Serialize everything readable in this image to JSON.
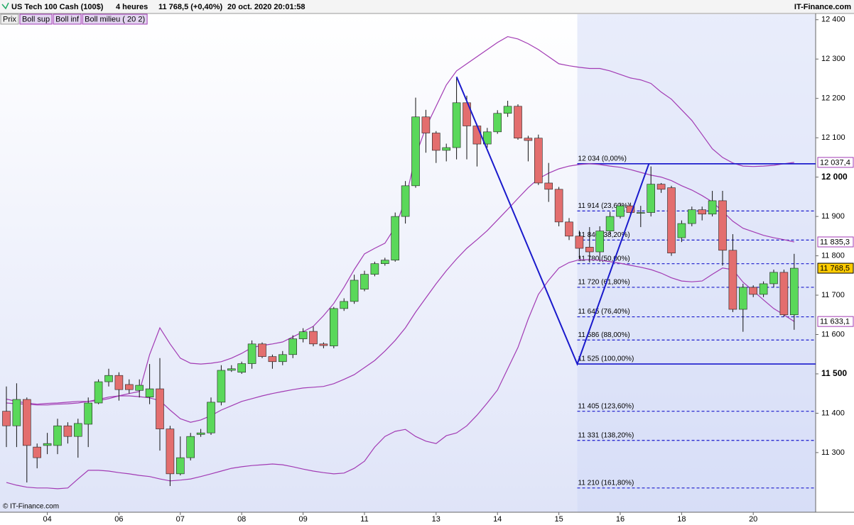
{
  "chart_data": {
    "type": "candlestick",
    "header": {
      "instrument": "US Tech 100 Cash (100$)",
      "period": "4 heures",
      "last": "11 768,5 (+0,40%)",
      "datetime": "20 oct. 2020 20:01:58",
      "source": "IT-Finance.com"
    },
    "footer": "© IT-Finance.com",
    "price_name": "Prix",
    "up_color": "#5ad85a",
    "down_color": "#e36e6e",
    "ylim": [
      11152,
      12414
    ],
    "yticks": [
      {
        "value": 12400,
        "label": "12 400"
      },
      {
        "value": 12300,
        "label": "12 300"
      },
      {
        "value": 12200,
        "label": "12 200"
      },
      {
        "value": 12100,
        "label": "12 100"
      },
      {
        "value": 12000,
        "label": "12 000",
        "bold": true
      },
      {
        "value": 11900,
        "label": "11 900"
      },
      {
        "value": 11800,
        "label": "11 800"
      },
      {
        "value": 11700,
        "label": "11 700"
      },
      {
        "value": 11600,
        "label": "11 600"
      },
      {
        "value": 11500,
        "label": "11 500",
        "bold": true
      },
      {
        "value": 11400,
        "label": "11 400"
      },
      {
        "value": 11300,
        "label": "11 300"
      }
    ],
    "categories": [
      null,
      null,
      null,
      null,
      "04",
      null,
      null,
      null,
      null,
      null,
      null,
      "06",
      null,
      null,
      null,
      null,
      null,
      "07",
      null,
      null,
      null,
      null,
      null,
      "08",
      null,
      null,
      null,
      null,
      null,
      "09",
      null,
      null,
      null,
      null,
      null,
      "11",
      null,
      null,
      null,
      null,
      null,
      null,
      "13",
      null,
      null,
      null,
      null,
      null,
      "14",
      null,
      null,
      null,
      null,
      null,
      "15",
      null,
      null,
      null,
      null,
      null,
      "16",
      null,
      null,
      null,
      null,
      null,
      "18",
      null,
      null,
      null,
      null,
      null,
      null,
      "20",
      null,
      null,
      null,
      null
    ],
    "candles": {
      "open": [
        11405,
        11368,
        11435,
        11314,
        11318,
        11318,
        11368,
        11341,
        11372,
        11426,
        11480,
        11496,
        11473,
        11458,
        11441,
        11462,
        11360,
        11246,
        11287,
        11346,
        11350,
        11428,
        11509,
        11504,
        11526,
        11576,
        11544,
        11531,
        11549,
        11589,
        11608,
        11576,
        11571,
        11666,
        11684,
        11715,
        11753,
        11780,
        11789,
        11900,
        11978,
        12153,
        12112,
        12068,
        12075,
        12189,
        12130,
        12084,
        12115,
        12162,
        12180,
        12099,
        12099,
        11985,
        11969,
        11886,
        11850,
        11822,
        11810,
        11863,
        11900,
        11927,
        11908,
        11910,
        11982,
        11973,
        11846,
        11882,
        11917,
        11906,
        11940,
        11814,
        11664,
        11720,
        11702,
        11729,
        11758,
        11650
      ],
      "high": [
        11468,
        11476,
        11440,
        11323,
        11350,
        11386,
        11377,
        11386,
        11440,
        11486,
        11513,
        11504,
        11486,
        11486,
        11525,
        11540,
        11368,
        11341,
        11350,
        11360,
        11440,
        11522,
        11522,
        11531,
        11585,
        11580,
        11549,
        11558,
        11598,
        11616,
        11620,
        11580,
        11670,
        11692,
        11752,
        11762,
        11785,
        11795,
        11910,
        11990,
        12202,
        12171,
        12117,
        12085,
        12252,
        12207,
        12135,
        12125,
        12170,
        12194,
        12185,
        12105,
        12108,
        12036,
        11975,
        11896,
        11864,
        11873,
        11875,
        11912,
        11935,
        11935,
        11927,
        12027,
        11985,
        11978,
        11890,
        11925,
        11925,
        11965,
        11965,
        11855,
        11729,
        11725,
        11735,
        11765,
        11765,
        11805
      ],
      "low": [
        11314,
        11314,
        11224,
        11260,
        11296,
        11296,
        11323,
        11287,
        11314,
        11423,
        11468,
        11432,
        11450,
        11440,
        11423,
        11305,
        11215,
        11242,
        11280,
        11340,
        11345,
        11420,
        11505,
        11500,
        11513,
        11540,
        11513,
        11522,
        11540,
        11580,
        11570,
        11565,
        11565,
        11660,
        11678,
        11710,
        11748,
        11775,
        11785,
        11882,
        11973,
        12062,
        12036,
        12040,
        12045,
        12045,
        12027,
        12075,
        12110,
        12153,
        12095,
        12040,
        11980,
        11937,
        11875,
        11840,
        11792,
        11783,
        11785,
        11855,
        11895,
        11900,
        11873,
        11900,
        11960,
        11800,
        11835,
        11875,
        11890,
        11900,
        11775,
        11657,
        11607,
        11695,
        11695,
        11720,
        11645,
        11612
      ],
      "close": [
        11368,
        11435,
        11318,
        11287,
        11323,
        11368,
        11341,
        11374,
        11426,
        11480,
        11496,
        11460,
        11460,
        11471,
        11462,
        11360,
        11246,
        11287,
        11341,
        11350,
        11428,
        11509,
        11513,
        11526,
        11576,
        11544,
        11531,
        11549,
        11589,
        11607,
        11576,
        11572,
        11666,
        11684,
        11738,
        11753,
        11780,
        11789,
        11900,
        11978,
        12153,
        12112,
        12068,
        12075,
        12189,
        12130,
        12084,
        12115,
        12162,
        12180,
        12099,
        12093,
        11985,
        11969,
        11886,
        11850,
        11819,
        11810,
        11863,
        11900,
        11927,
        11910,
        11910,
        11982,
        11969,
        11807,
        11882,
        11917,
        11906,
        11940,
        11814,
        11664,
        11720,
        11702,
        11729,
        11758,
        11650,
        11768.5
      ]
    },
    "series": [
      {
        "name": "Boll sup",
        "color": "#a23bb4",
        "values": [
          11436,
          11430,
          11426,
          11423,
          11425,
          11426,
          11428,
          11430,
          11430,
          11432,
          11437,
          11444,
          11450,
          11455,
          11549,
          11617,
          11576,
          11540,
          11527,
          11525,
          11527,
          11531,
          11540,
          11552,
          11567,
          11572,
          11576,
          11581,
          11594,
          11607,
          11621,
          11648,
          11679,
          11720,
          11765,
          11805,
          11819,
          11832,
          11873,
          11942,
          12054,
          12126,
          12180,
          12234,
          12270,
          12288,
          12306,
          12324,
          12342,
          12357,
          12351,
          12339,
          12324,
          12306,
          12288,
          12283,
          12279,
          12276,
          12276,
          12270,
          12261,
          12252,
          12247,
          12238,
          12216,
          12198,
          12171,
          12144,
          12108,
          12072,
          12050,
          12036,
          12028,
          12027,
          12028,
          12030,
          12034,
          12037.4
        ]
      },
      {
        "name": "Boll inf",
        "color": "#a23bb4",
        "values": [
          11224,
          11217,
          11212,
          11210,
          11210,
          11208,
          11210,
          11233,
          11255,
          11255,
          11253,
          11249,
          11246,
          11242,
          11239,
          11233,
          11228,
          11230,
          11233,
          11239,
          11246,
          11253,
          11260,
          11264,
          11267,
          11269,
          11271,
          11269,
          11264,
          11258,
          11253,
          11249,
          11246,
          11248,
          11260,
          11278,
          11314,
          11341,
          11354,
          11359,
          11341,
          11329,
          11323,
          11343,
          11350,
          11368,
          11395,
          11426,
          11459,
          11513,
          11567,
          11639,
          11702,
          11738,
          11769,
          11783,
          11790,
          11790,
          11789,
          11785,
          11781,
          11776,
          11771,
          11765,
          11756,
          11744,
          11736,
          11734,
          11736,
          11753,
          11769,
          11765,
          11733,
          11711,
          11688,
          11666,
          11650,
          11633.1
        ]
      },
      {
        "name": "Boll milieu ( 20 2)",
        "color": "#a23bb4",
        "values": [
          11426,
          11424,
          11423,
          11421,
          11421,
          11423,
          11424,
          11426,
          11430,
          11435,
          11441,
          11444,
          11444,
          11442,
          11439,
          11432,
          11408,
          11386,
          11377,
          11383,
          11394,
          11408,
          11419,
          11430,
          11437,
          11444,
          11450,
          11455,
          11460,
          11464,
          11466,
          11468,
          11475,
          11486,
          11498,
          11516,
          11534,
          11558,
          11585,
          11617,
          11657,
          11693,
          11729,
          11762,
          11792,
          11819,
          11841,
          11864,
          11891,
          11918,
          11946,
          11973,
          11996,
          12010,
          12021,
          12028,
          12032,
          12034,
          12032,
          12028,
          12025,
          12019,
          12012,
          12005,
          12000,
          11991,
          11978,
          11967,
          11953,
          11937,
          11913,
          11888,
          11870,
          11861,
          11852,
          11846,
          11841,
          11835.3
        ]
      }
    ],
    "zigzag": {
      "color": "#1a1acc",
      "x": [
        44,
        55.8,
        62.8
      ],
      "values": [
        12255,
        11525,
        12034
      ]
    },
    "fibonacci": {
      "color": "#1a1acc",
      "start_x": 55.8,
      "levels": [
        {
          "value": 12034,
          "label": "12 034 (0,00%)",
          "solid": true
        },
        {
          "value": 11914,
          "label": "11 914 (23,60%)"
        },
        {
          "value": 11840,
          "label": "11 840 (38,20%)"
        },
        {
          "value": 11780,
          "label": "11 780 (50,00%)"
        },
        {
          "value": 11720,
          "label": "11 720 (61,80%)"
        },
        {
          "value": 11645,
          "label": "11 645 (76,40%)"
        },
        {
          "value": 11586,
          "label": "11 586 (88,00%)"
        },
        {
          "value": 11525,
          "label": "11 525 (100,00%)",
          "solid": true
        },
        {
          "value": 11405,
          "label": "11 405 (123,60%)"
        },
        {
          "value": 11331,
          "label": "11 331 (138,20%)"
        },
        {
          "value": 11210,
          "label": "11 210 (161,80%)"
        }
      ]
    },
    "price_tags": [
      {
        "value": 12037.4,
        "label": "12 037,4",
        "color": "#a23bb4",
        "background": "#ffffff"
      },
      {
        "value": 11835.3,
        "label": "11 835,3",
        "color": "#a23bb4",
        "background": "#ffffff"
      },
      {
        "value": 11768.5,
        "label": "11 768,5",
        "color": "#000000",
        "background": "#ffcc00"
      },
      {
        "value": 11633.1,
        "label": "11 633,1",
        "color": "#a23bb4",
        "background": "#ffffff"
      }
    ]
  }
}
